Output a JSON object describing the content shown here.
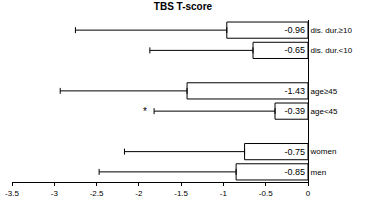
{
  "chart_data": {
    "type": "bar",
    "title": "TBS T-score",
    "orientation": "horizontal",
    "categories": [
      "dis. dur.≥10",
      "dis. dur.<10",
      null,
      "age≥45",
      "age<45",
      null,
      "women",
      "men"
    ],
    "values": [
      -0.96,
      -0.65,
      null,
      -1.43,
      -0.39,
      null,
      -0.75,
      -0.85
    ],
    "error_minus": [
      1.79,
      1.22,
      null,
      1.5,
      1.43,
      null,
      1.42,
      1.62
    ],
    "color": "#ffffff",
    "xlim": [
      -3.5,
      0
    ],
    "xticks": [
      -3.5,
      -3,
      -2.5,
      -2,
      -1.5,
      -1,
      -0.5,
      0
    ],
    "grid": false,
    "data_labels": true,
    "annotations": [
      {
        "text": "*",
        "x": -1.93,
        "category": "age<45"
      }
    ]
  }
}
